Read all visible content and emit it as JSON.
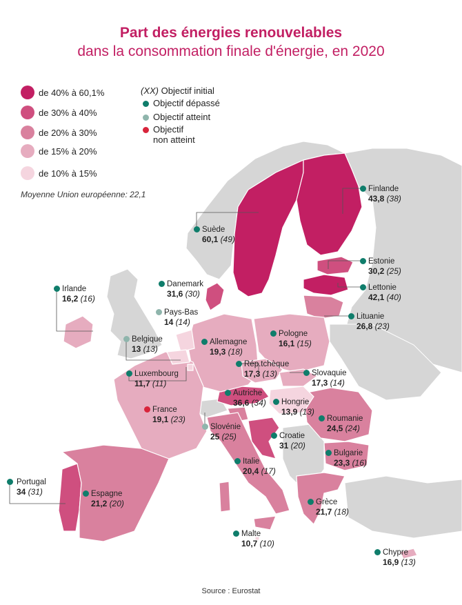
{
  "title": "Part des énergies renouvelables",
  "subtitle": "dans la consommation finale d'énergie, en 2020",
  "legend_ranges": [
    {
      "label": "de 40% à 60,1%",
      "color": "#c21f63"
    },
    {
      "label": "de 30% à 40%",
      "color": "#cf4f7f"
    },
    {
      "label": "de 20% à 30%",
      "color": "#d9819e"
    },
    {
      "label": "de 15% à 20%",
      "color": "#e6acbf"
    },
    {
      "label": "de 10% à 15%",
      "color": "#f5d5df"
    }
  ],
  "legend_objective": {
    "header_code": "(XX)",
    "header_text": "Objectif initial",
    "exceeded": {
      "label": "Objectif dépassé",
      "color": "#0f7d6b"
    },
    "reached": {
      "label": "Objectif atteint",
      "color": "#8fb5ac"
    },
    "missed": {
      "label_line1": "Objectif",
      "label_line2": "non atteint",
      "color": "#d8243b"
    }
  },
  "eu_average": "Moyenne Union européenne: 22,1",
  "countries": [
    {
      "name": "Finlande",
      "value": "43,8",
      "objective": "(38)"
    },
    {
      "name": "Suède",
      "value": "60,1",
      "objective": "(49)"
    },
    {
      "name": "Estonie",
      "value": "30,2",
      "objective": "(25)"
    },
    {
      "name": "Lettonie",
      "value": "42,1",
      "objective": "(40)"
    },
    {
      "name": "Lituanie",
      "value": "26,8",
      "objective": "(23)"
    },
    {
      "name": "Danemark",
      "value": "31,6",
      "objective": "(30)"
    },
    {
      "name": "Irlande",
      "value": "16,2",
      "objective": "(16)"
    },
    {
      "name": "Pays-Bas",
      "value": "14",
      "objective": "(14)"
    },
    {
      "name": "Belgique",
      "value": "13",
      "objective": "(13)"
    },
    {
      "name": "Allemagne",
      "value": "19,3",
      "objective": "(18)"
    },
    {
      "name": "Pologne",
      "value": "16,1",
      "objective": "(15)"
    },
    {
      "name": "Rép.tchèque",
      "value": "17,3",
      "objective": "(13)"
    },
    {
      "name": "Slovaquie",
      "value": "17,3",
      "objective": "(14)"
    },
    {
      "name": "Luxembourg",
      "value": "11,7",
      "objective": "(11)"
    },
    {
      "name": "Autriche",
      "value": "36,6",
      "objective": "(34)"
    },
    {
      "name": "Hongrie",
      "value": "13,9",
      "objective": "(13)"
    },
    {
      "name": "France",
      "value": "19,1",
      "objective": "(23)"
    },
    {
      "name": "Slovénie",
      "value": "25",
      "objective": "(25)"
    },
    {
      "name": "Roumanie",
      "value": "24,5",
      "objective": "(24)"
    },
    {
      "name": "Croatie",
      "value": "31",
      "objective": "(20)"
    },
    {
      "name": "Bulgarie",
      "value": "23,3",
      "objective": "(16)"
    },
    {
      "name": "Italie",
      "value": "20,4",
      "objective": "(17)"
    },
    {
      "name": "Portugal",
      "value": "34",
      "objective": "(31)"
    },
    {
      "name": "Espagne",
      "value": "21,2",
      "objective": "(20)"
    },
    {
      "name": "Grèce",
      "value": "21,7",
      "objective": "(18)"
    },
    {
      "name": "Malte",
      "value": "10,7",
      "objective": "(10)"
    },
    {
      "name": "Chypre",
      "value": "16,9",
      "objective": "(13)"
    }
  ],
  "source": "Source : Eurostat"
}
